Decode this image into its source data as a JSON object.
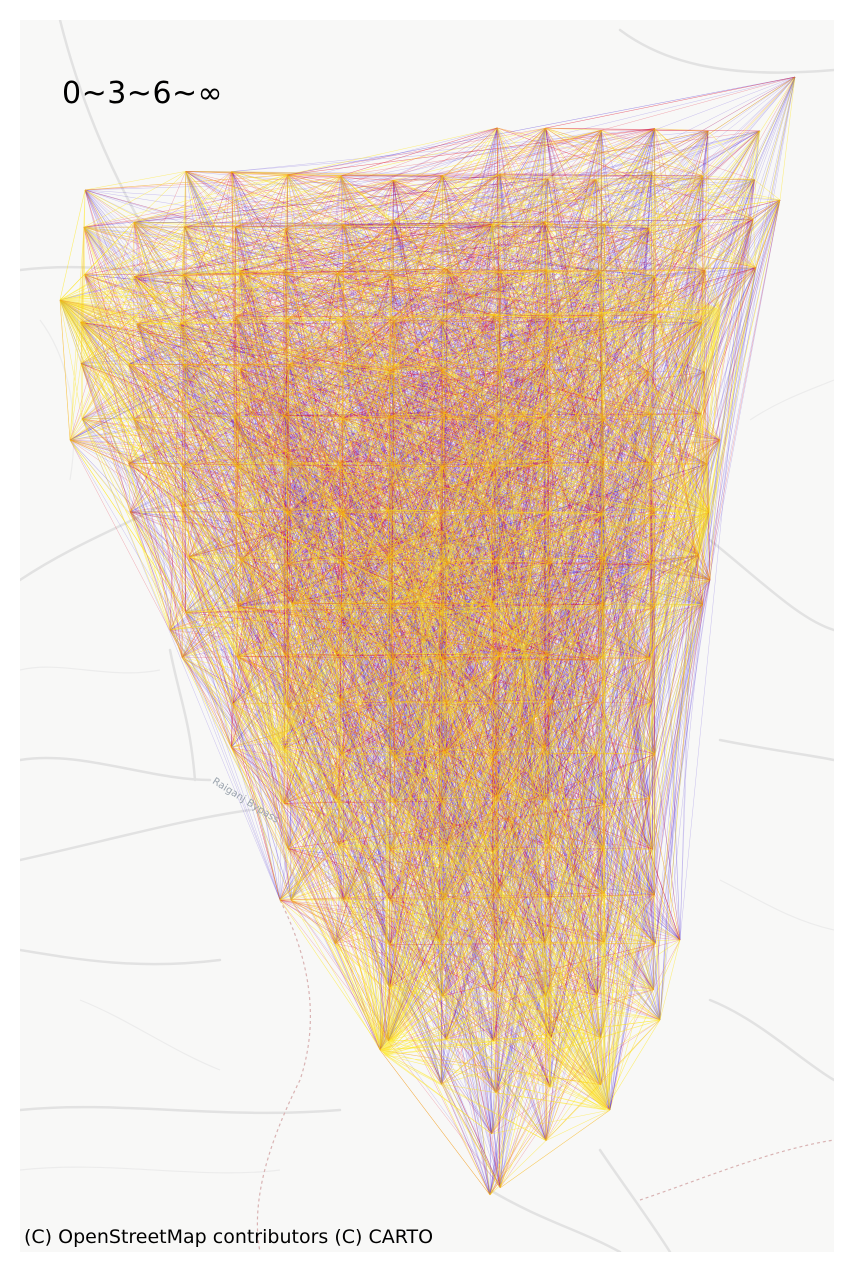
{
  "legend": {
    "title": "0~3~6~∞"
  },
  "basemap": {
    "road_label": "Raiganj Bypass"
  },
  "attribution": "(C) OpenStreetMap contributors (C) CARTO",
  "colors": {
    "background": "#f8f8f7",
    "road": "#e4e4e4",
    "road_major": "#d9d9d9",
    "rail": "#d9b3b3",
    "band_short": "#ffe600",
    "band_medium": "#e0102f",
    "band_long": "#4a2bd6"
  },
  "bands": [
    {
      "name": "0~3",
      "color": "#ffe600"
    },
    {
      "name": "3~6",
      "color": "#e0102f"
    },
    {
      "name": "6~∞",
      "color": "#4a2bd6"
    }
  ]
}
